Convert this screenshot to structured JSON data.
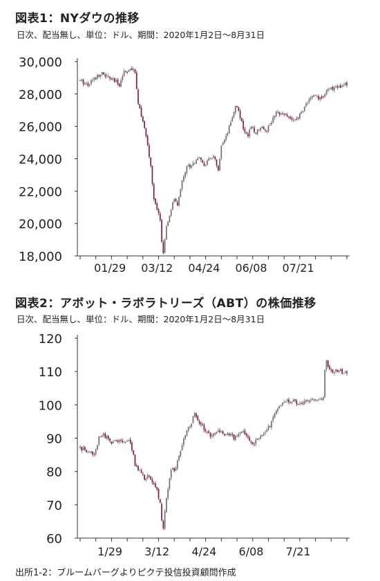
{
  "chart_data": [
    {
      "type": "candlestick",
      "title": "図表1：NYダウの推移",
      "subtitle": "日次、配当無し、単位：ドル、期間：2020年1月2日～8月31日",
      "ylim": [
        18000,
        30000
      ],
      "yticks": [
        "30,000",
        "28,000",
        "26,000",
        "24,000",
        "22,000",
        "20,000",
        "18,000"
      ],
      "ytick_values": [
        30000,
        28000,
        26000,
        24000,
        22000,
        20000,
        18000
      ],
      "xticks": [
        "01/29",
        "03/12",
        "04/24",
        "06/08",
        "07/21"
      ],
      "xtick_positions": [
        19,
        49,
        79,
        109,
        139
      ],
      "n_days": 171,
      "colors": {
        "up": "#6e6e6e",
        "down": "#7a1a48"
      },
      "anchors": [
        [
          0,
          28800
        ],
        [
          5,
          28600
        ],
        [
          13,
          29300
        ],
        [
          20,
          28900
        ],
        [
          25,
          28600
        ],
        [
          28,
          29400
        ],
        [
          33,
          29500
        ],
        [
          35,
          29300
        ],
        [
          37,
          27500
        ],
        [
          40,
          26300
        ],
        [
          41,
          25800
        ],
        [
          43,
          24800
        ],
        [
          45,
          23500
        ],
        [
          47,
          21500
        ],
        [
          49,
          20800
        ],
        [
          51,
          20300
        ],
        [
          52,
          18900
        ],
        [
          53,
          18200
        ],
        [
          55,
          19700
        ],
        [
          57,
          20500
        ],
        [
          60,
          21600
        ],
        [
          62,
          21000
        ],
        [
          65,
          22700
        ],
        [
          68,
          23500
        ],
        [
          72,
          23700
        ],
        [
          75,
          24100
        ],
        [
          79,
          23600
        ],
        [
          82,
          23900
        ],
        [
          85,
          24200
        ],
        [
          88,
          23200
        ],
        [
          90,
          24700
        ],
        [
          93,
          25300
        ],
        [
          96,
          26200
        ],
        [
          99,
          27300
        ],
        [
          101,
          27000
        ],
        [
          104,
          25800
        ],
        [
          107,
          25500
        ],
        [
          109,
          25900
        ],
        [
          112,
          25600
        ],
        [
          115,
          26000
        ],
        [
          119,
          25800
        ],
        [
          122,
          26300
        ],
        [
          125,
          26800
        ],
        [
          128,
          26900
        ],
        [
          131,
          26700
        ],
        [
          134,
          26500
        ],
        [
          137,
          26300
        ],
        [
          140,
          26700
        ],
        [
          143,
          27200
        ],
        [
          146,
          27700
        ],
        [
          150,
          27900
        ],
        [
          153,
          27700
        ],
        [
          157,
          28200
        ],
        [
          160,
          28300
        ],
        [
          163,
          28500
        ],
        [
          166,
          28400
        ],
        [
          170,
          28600
        ]
      ]
    },
    {
      "type": "candlestick",
      "title": "図表2：アボット・ラボラトリーズ（ABT）の株価推移",
      "subtitle": "日次、配当無し、単位：ドル、期間：2020年1月2日～8月31日",
      "ylim": [
        60,
        120
      ],
      "yticks": [
        "120",
        "110",
        "100",
        "90",
        "80",
        "70",
        "60"
      ],
      "ytick_values": [
        120,
        110,
        100,
        90,
        80,
        70,
        60
      ],
      "xticks": [
        "1/29",
        "3/12",
        "4/24",
        "6/08",
        "7/21"
      ],
      "xtick_positions": [
        19,
        49,
        79,
        109,
        139
      ],
      "n_days": 171,
      "colors": {
        "up": "#6e6e6e",
        "down": "#7a1a48"
      },
      "anchors": [
        [
          0,
          87
        ],
        [
          5,
          86
        ],
        [
          9,
          85
        ],
        [
          12,
          90
        ],
        [
          15,
          91
        ],
        [
          20,
          89
        ],
        [
          26,
          89
        ],
        [
          31,
          89
        ],
        [
          33,
          87
        ],
        [
          35,
          82
        ],
        [
          38,
          80
        ],
        [
          41,
          78
        ],
        [
          44,
          79
        ],
        [
          47,
          76
        ],
        [
          49,
          74
        ],
        [
          51,
          71
        ],
        [
          52,
          65
        ],
        [
          53,
          63
        ],
        [
          55,
          72
        ],
        [
          58,
          80
        ],
        [
          61,
          81
        ],
        [
          64,
          86
        ],
        [
          67,
          91
        ],
        [
          70,
          94
        ],
        [
          73,
          97
        ],
        [
          75,
          96
        ],
        [
          77,
          94
        ],
        [
          80,
          92
        ],
        [
          83,
          91
        ],
        [
          86,
          91
        ],
        [
          89,
          92
        ],
        [
          92,
          91
        ],
        [
          95,
          91
        ],
        [
          98,
          90
        ],
        [
          101,
          91
        ],
        [
          104,
          92
        ],
        [
          107,
          90
        ],
        [
          110,
          88
        ],
        [
          113,
          90
        ],
        [
          116,
          91
        ],
        [
          119,
          92
        ],
        [
          122,
          95
        ],
        [
          125,
          98
        ],
        [
          128,
          100
        ],
        [
          131,
          101
        ],
        [
          134,
          101
        ],
        [
          137,
          101
        ],
        [
          140,
          100
        ],
        [
          143,
          101
        ],
        [
          146,
          101
        ],
        [
          149,
          101
        ],
        [
          152,
          102
        ],
        [
          155,
          102
        ],
        [
          156,
          111
        ],
        [
          157,
          113
        ],
        [
          158,
          111
        ],
        [
          160,
          110
        ]
      ]
    }
  ],
  "source": "出所1-2：ブルームバーグよりピクテ投信投資顧問作成"
}
